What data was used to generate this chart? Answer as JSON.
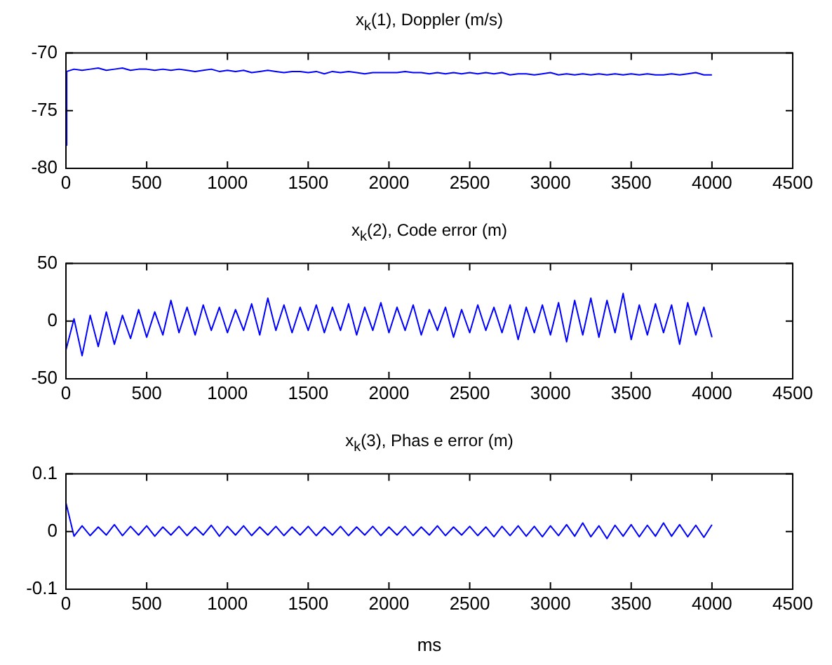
{
  "chart_data": [
    {
      "type": "line",
      "title": "x$_{k}$(1), Doppler (m/s)",
      "xlim": [
        0,
        4500
      ],
      "xticks": [
        0,
        500,
        1000,
        1500,
        2000,
        2500,
        3000,
        3500,
        4000,
        4500
      ],
      "ylim": [
        -80,
        -70
      ],
      "yticks": [
        -80,
        -75,
        -70
      ],
      "grid": false,
      "legend": false,
      "marker": "none",
      "x": [
        0,
        5,
        50,
        100,
        150,
        200,
        250,
        300,
        350,
        400,
        450,
        500,
        550,
        600,
        650,
        700,
        750,
        800,
        850,
        900,
        950,
        1000,
        1050,
        1100,
        1150,
        1200,
        1250,
        1300,
        1350,
        1400,
        1450,
        1500,
        1550,
        1600,
        1650,
        1700,
        1750,
        1800,
        1850,
        1900,
        1950,
        2000,
        2050,
        2100,
        2150,
        2200,
        2250,
        2300,
        2350,
        2400,
        2450,
        2500,
        2550,
        2600,
        2650,
        2700,
        2750,
        2800,
        2850,
        2900,
        2950,
        3000,
        3050,
        3100,
        3150,
        3200,
        3250,
        3300,
        3350,
        3400,
        3450,
        3500,
        3550,
        3600,
        3650,
        3700,
        3750,
        3800,
        3850,
        3900,
        3950,
        4000
      ],
      "series": [
        {
          "color": "#0000ff",
          "values": [
            -78,
            -71.6,
            -71.4,
            -71.5,
            -71.4,
            -71.3,
            -71.5,
            -71.4,
            -71.3,
            -71.5,
            -71.4,
            -71.4,
            -71.5,
            -71.4,
            -71.5,
            -71.4,
            -71.5,
            -71.6,
            -71.5,
            -71.4,
            -71.6,
            -71.5,
            -71.6,
            -71.5,
            -71.7,
            -71.6,
            -71.5,
            -71.6,
            -71.7,
            -71.6,
            -71.6,
            -71.7,
            -71.6,
            -71.8,
            -71.6,
            -71.7,
            -71.6,
            -71.7,
            -71.8,
            -71.7,
            -71.7,
            -71.7,
            -71.7,
            -71.6,
            -71.7,
            -71.7,
            -71.8,
            -71.7,
            -71.8,
            -71.7,
            -71.8,
            -71.7,
            -71.8,
            -71.7,
            -71.8,
            -71.7,
            -71.9,
            -71.8,
            -71.8,
            -71.9,
            -71.8,
            -71.7,
            -71.9,
            -71.8,
            -71.9,
            -71.8,
            -71.9,
            -71.8,
            -71.9,
            -71.8,
            -71.9,
            -71.8,
            -71.9,
            -71.8,
            -71.9,
            -71.9,
            -71.8,
            -71.9,
            -71.8,
            -71.7,
            -71.9,
            -71.9
          ]
        }
      ]
    },
    {
      "type": "line",
      "title": "x$_{k}$(2), Code error (m)",
      "xlim": [
        0,
        4500
      ],
      "xticks": [
        0,
        500,
        1000,
        1500,
        2000,
        2500,
        3000,
        3500,
        4000,
        4500
      ],
      "ylim": [
        -50,
        50
      ],
      "yticks": [
        -50,
        0,
        50
      ],
      "grid": false,
      "legend": false,
      "marker": "none",
      "x": [
        0,
        50,
        100,
        150,
        200,
        250,
        300,
        350,
        400,
        450,
        500,
        550,
        600,
        650,
        700,
        750,
        800,
        850,
        900,
        950,
        1000,
        1050,
        1100,
        1150,
        1200,
        1250,
        1300,
        1350,
        1400,
        1450,
        1500,
        1550,
        1600,
        1650,
        1700,
        1750,
        1800,
        1850,
        1900,
        1950,
        2000,
        2050,
        2100,
        2150,
        2200,
        2250,
        2300,
        2350,
        2400,
        2450,
        2500,
        2550,
        2600,
        2650,
        2700,
        2750,
        2800,
        2850,
        2900,
        2950,
        3000,
        3050,
        3100,
        3150,
        3200,
        3250,
        3300,
        3350,
        3400,
        3450,
        3500,
        3550,
        3600,
        3650,
        3700,
        3750,
        3800,
        3850,
        3900,
        3950,
        4000
      ],
      "series": [
        {
          "color": "#0000ff",
          "values": [
            -25,
            2,
            -30,
            5,
            -22,
            8,
            -20,
            5,
            -15,
            10,
            -14,
            8,
            -12,
            18,
            -10,
            12,
            -12,
            14,
            -8,
            12,
            -10,
            10,
            -8,
            15,
            -12,
            20,
            -8,
            14,
            -10,
            12,
            -8,
            14,
            -10,
            12,
            -8,
            15,
            -12,
            12,
            -8,
            16,
            -10,
            12,
            -8,
            14,
            -12,
            10,
            -8,
            12,
            -14,
            10,
            -10,
            14,
            -8,
            12,
            -10,
            14,
            -16,
            12,
            -10,
            14,
            -12,
            16,
            -18,
            18,
            -12,
            20,
            -14,
            18,
            -10,
            24,
            -16,
            14,
            -12,
            15,
            -10,
            14,
            -20,
            16,
            -12,
            12,
            -14
          ]
        }
      ]
    },
    {
      "type": "line",
      "title": "x$_{k}$(3), Phas e error (m)",
      "xlabel": "ms",
      "xlim": [
        0,
        4500
      ],
      "xticks": [
        0,
        500,
        1000,
        1500,
        2000,
        2500,
        3000,
        3500,
        4000,
        4500
      ],
      "ylim": [
        -0.1,
        0.1
      ],
      "yticks": [
        -0.1,
        0,
        0.1
      ],
      "grid": false,
      "legend": false,
      "marker": "none",
      "x": [
        0,
        50,
        100,
        150,
        200,
        250,
        300,
        350,
        400,
        450,
        500,
        550,
        600,
        650,
        700,
        750,
        800,
        850,
        900,
        950,
        1000,
        1050,
        1100,
        1150,
        1200,
        1250,
        1300,
        1350,
        1400,
        1450,
        1500,
        1550,
        1600,
        1650,
        1700,
        1750,
        1800,
        1850,
        1900,
        1950,
        2000,
        2050,
        2100,
        2150,
        2200,
        2250,
        2300,
        2350,
        2400,
        2450,
        2500,
        2550,
        2600,
        2650,
        2700,
        2750,
        2800,
        2850,
        2900,
        2950,
        3000,
        3050,
        3100,
        3150,
        3200,
        3250,
        3300,
        3350,
        3400,
        3450,
        3500,
        3550,
        3600,
        3650,
        3700,
        3750,
        3800,
        3850,
        3900,
        3950,
        4000
      ],
      "series": [
        {
          "color": "#0000ff",
          "values": [
            0.05,
            -0.008,
            0.01,
            -0.007,
            0.008,
            -0.006,
            0.012,
            -0.007,
            0.009,
            -0.006,
            0.01,
            -0.008,
            0.008,
            -0.006,
            0.009,
            -0.007,
            0.008,
            -0.006,
            0.011,
            -0.008,
            0.009,
            -0.006,
            0.01,
            -0.007,
            0.008,
            -0.006,
            0.009,
            -0.007,
            0.008,
            -0.006,
            0.009,
            -0.007,
            0.008,
            -0.006,
            0.009,
            -0.007,
            0.008,
            -0.006,
            0.009,
            -0.007,
            0.008,
            -0.006,
            0.009,
            -0.007,
            0.008,
            -0.006,
            0.01,
            -0.007,
            0.008,
            -0.006,
            0.009,
            -0.007,
            0.008,
            -0.009,
            0.009,
            -0.007,
            0.01,
            -0.008,
            0.009,
            -0.009,
            0.01,
            -0.007,
            0.012,
            -0.008,
            0.015,
            -0.009,
            0.01,
            -0.012,
            0.011,
            -0.008,
            0.012,
            -0.009,
            0.011,
            -0.008,
            0.015,
            -0.008,
            0.012,
            -0.009,
            0.011,
            -0.01,
            0.012
          ]
        }
      ]
    }
  ]
}
